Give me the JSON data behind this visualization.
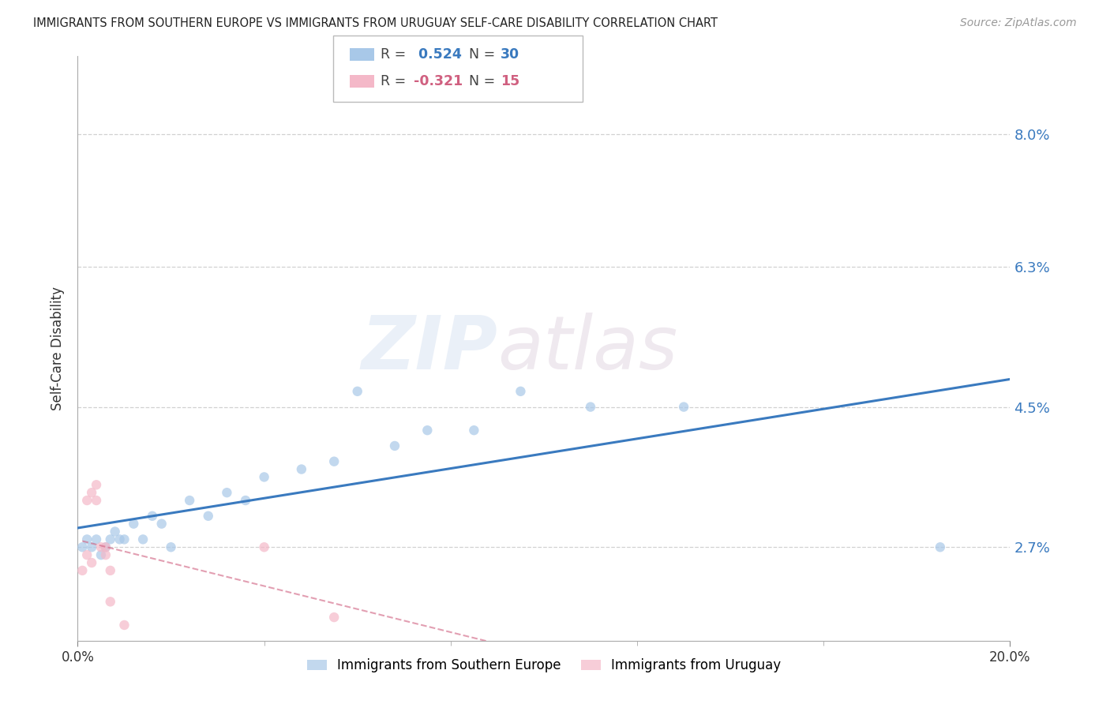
{
  "title": "IMMIGRANTS FROM SOUTHERN EUROPE VS IMMIGRANTS FROM URUGUAY SELF-CARE DISABILITY CORRELATION CHART",
  "source": "Source: ZipAtlas.com",
  "ylabel": "Self-Care Disability",
  "yticks": [
    2.7,
    4.5,
    6.3,
    8.0
  ],
  "xlim": [
    0.0,
    0.2
  ],
  "ylim": [
    0.015,
    0.09
  ],
  "legend1_label": "Immigrants from Southern Europe",
  "legend2_label": "Immigrants from Uruguay",
  "R1": 0.524,
  "N1": 30,
  "R2": -0.321,
  "N2": 15,
  "blue_color": "#a8c8e8",
  "pink_color": "#f4b8c8",
  "trendline1_color": "#3a7abf",
  "trendline2_color": "#d06080",
  "blue_points_x": [
    0.001,
    0.002,
    0.003,
    0.004,
    0.005,
    0.006,
    0.007,
    0.008,
    0.009,
    0.01,
    0.012,
    0.014,
    0.016,
    0.018,
    0.02,
    0.024,
    0.028,
    0.032,
    0.036,
    0.04,
    0.048,
    0.055,
    0.06,
    0.068,
    0.075,
    0.085,
    0.095,
    0.11,
    0.13,
    0.185
  ],
  "blue_points_y": [
    0.027,
    0.028,
    0.027,
    0.028,
    0.026,
    0.027,
    0.028,
    0.029,
    0.028,
    0.028,
    0.03,
    0.028,
    0.031,
    0.03,
    0.027,
    0.033,
    0.031,
    0.034,
    0.033,
    0.036,
    0.037,
    0.038,
    0.047,
    0.04,
    0.042,
    0.042,
    0.047,
    0.045,
    0.045,
    0.027
  ],
  "pink_points_x": [
    0.001,
    0.002,
    0.002,
    0.003,
    0.003,
    0.004,
    0.004,
    0.005,
    0.006,
    0.006,
    0.007,
    0.007,
    0.01,
    0.04,
    0.055
  ],
  "pink_points_y": [
    0.024,
    0.026,
    0.033,
    0.025,
    0.034,
    0.035,
    0.033,
    0.027,
    0.027,
    0.026,
    0.024,
    0.02,
    0.017,
    0.027,
    0.018
  ],
  "watermark_zip": "ZIP",
  "watermark_atlas": "atlas",
  "background_color": "#ffffff",
  "grid_color": "#cccccc"
}
